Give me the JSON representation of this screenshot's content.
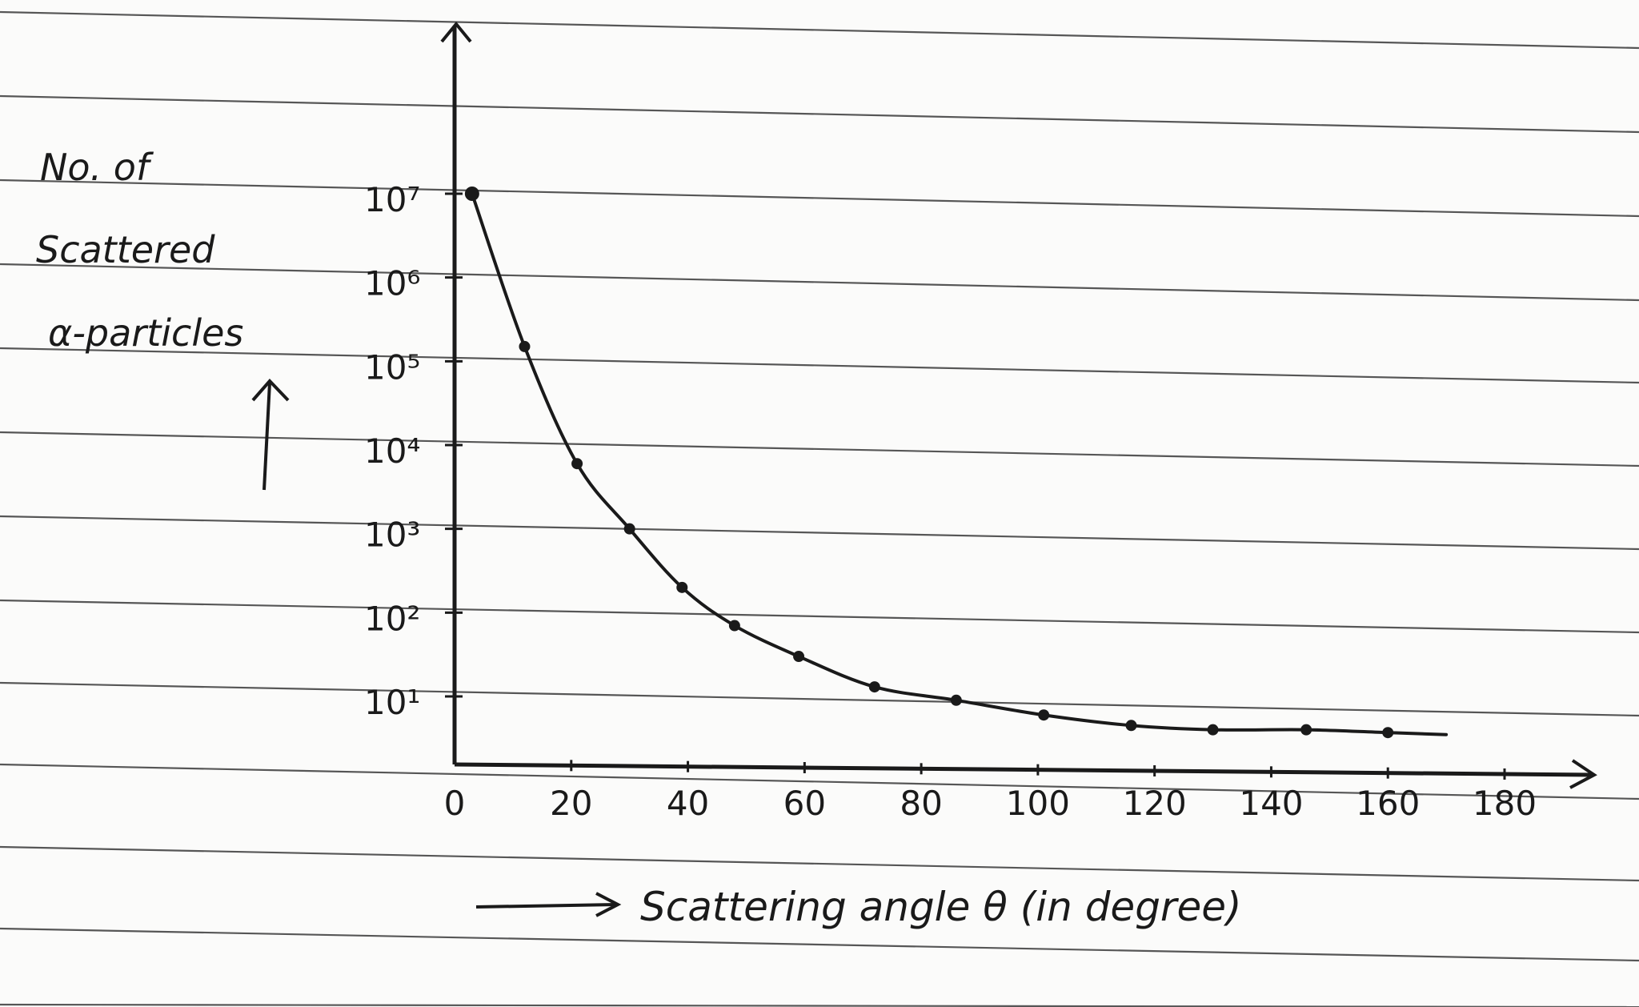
{
  "chart_data": {
    "type": "scatter",
    "title": "",
    "ylabel_lines": [
      "No. of",
      "Scattered",
      "α-particles"
    ],
    "xlabel": "Scattering angle θ (in degree)",
    "x_ticks": [
      "0",
      "20",
      "40",
      "60",
      "80",
      "100",
      "120",
      "140",
      "160",
      "180"
    ],
    "y_ticks": [
      "10¹",
      "10²",
      "10³",
      "10⁴",
      "10⁵",
      "10⁶",
      "10⁷"
    ],
    "y_scale": "log",
    "xlim": [
      0,
      180
    ],
    "ylim": [
      1,
      10000000
    ],
    "grid": false,
    "series": [
      {
        "points": [
          {
            "x": 3,
            "y": 10000000
          },
          {
            "x": 12,
            "y": 150000
          },
          {
            "x": 21,
            "y": 6000
          },
          {
            "x": 30,
            "y": 1000
          },
          {
            "x": 39,
            "y": 200
          },
          {
            "x": 48,
            "y": 70
          },
          {
            "x": 59,
            "y": 30
          },
          {
            "x": 72,
            "y": 13
          },
          {
            "x": 86,
            "y": 9
          },
          {
            "x": 101,
            "y": 6
          },
          {
            "x": 116,
            "y": 4.5
          },
          {
            "x": 130,
            "y": 4
          },
          {
            "x": 146,
            "y": 4
          },
          {
            "x": 160,
            "y": 3.7
          }
        ],
        "curve_end": {
          "x": 170,
          "y": 3.5
        },
        "color": "#1a1a1a"
      }
    ],
    "colors": {
      "ink": "#1a1a1a",
      "ruled_lines": "#3a3a3a",
      "paper": "#fbfbfa"
    }
  }
}
